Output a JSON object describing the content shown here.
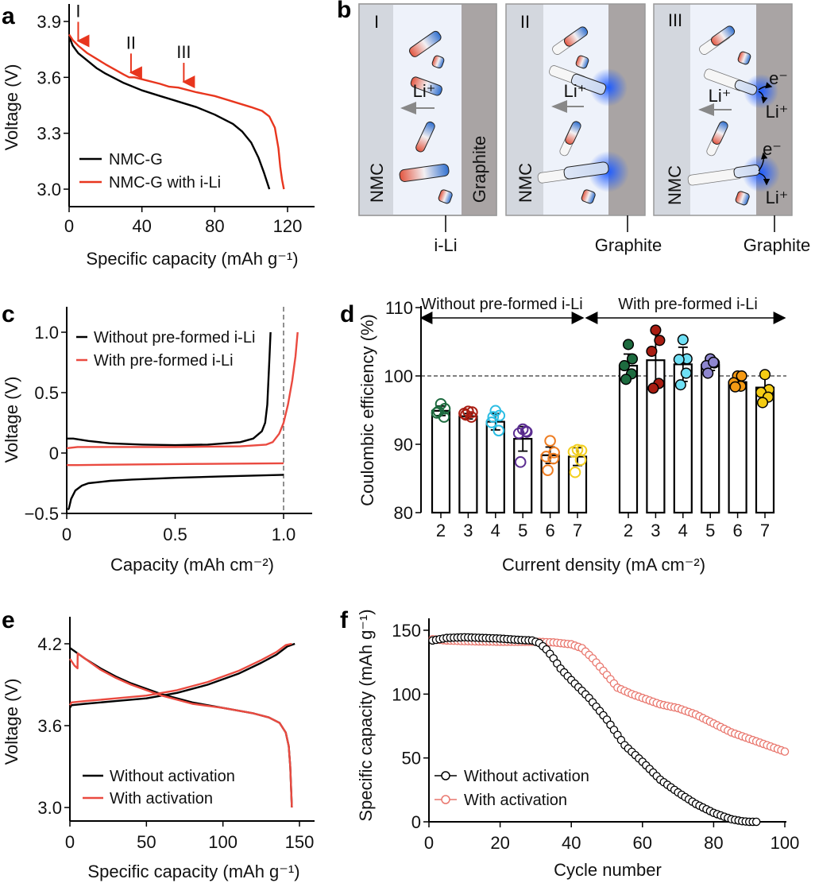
{
  "panel_labels": {
    "a": "a",
    "b": "b",
    "c": "c",
    "d": "d",
    "e": "e",
    "f": "f"
  },
  "colors": {
    "black": "#000000",
    "red_a": "#e8361e",
    "red_ce": "#ea4a40",
    "red_f": "#e9776e"
  },
  "chart_data": [
    {
      "id": "a",
      "type": "line",
      "xlabel": "Specific capacity (mAh g⁻¹)",
      "ylabel": "Voltage (V)",
      "xlim": [
        0,
        135
      ],
      "ylim": [
        2.9,
        3.95
      ],
      "xticks": [
        0,
        40,
        80,
        120
      ],
      "xtick_labels": [
        "0",
        "40",
        "80",
        "120"
      ],
      "yticks": [
        3.0,
        3.3,
        3.6,
        3.9
      ],
      "ytick_labels": [
        "3.0",
        "3.3",
        "3.6",
        "3.9"
      ],
      "legend": "bottom-left",
      "series": [
        {
          "name": "NMC-G",
          "color": "#000000",
          "segments": [
            {
              "x": [
                0,
                2,
                5,
                10,
                15,
                20,
                30,
                40,
                50,
                60,
                70,
                80,
                90,
                95,
                100,
                104,
                107,
                110
              ],
              "y": [
                3.82,
                3.77,
                3.73,
                3.69,
                3.65,
                3.62,
                3.57,
                3.53,
                3.5,
                3.47,
                3.44,
                3.4,
                3.35,
                3.31,
                3.25,
                3.17,
                3.09,
                3.0
              ]
            }
          ]
        },
        {
          "name": "NMC-G with i-Li",
          "color": "#e8361e",
          "segments": [
            {
              "x": [
                0,
                2,
                5,
                10,
                20,
                30,
                33,
                36,
                40,
                50,
                55,
                60,
                70,
                80,
                90,
                100,
                106,
                110,
                113,
                115,
                116,
                117,
                118
              ],
              "y": [
                3.83,
                3.8,
                3.77,
                3.73,
                3.67,
                3.615,
                3.6,
                3.6,
                3.59,
                3.565,
                3.55,
                3.545,
                3.52,
                3.5,
                3.47,
                3.44,
                3.42,
                3.39,
                3.33,
                3.22,
                3.12,
                3.05,
                3.0
              ]
            }
          ]
        }
      ],
      "annotations": [
        {
          "text": "I",
          "x": 5,
          "y": 3.77
        },
        {
          "text": "II",
          "x": 34,
          "y": 3.6
        },
        {
          "text": "III",
          "x": 63,
          "y": 3.55
        }
      ]
    },
    {
      "id": "c",
      "type": "line",
      "xlabel": "Capacity (mAh cm⁻²)",
      "ylabel": "Voltage (V)",
      "xlim": [
        0,
        1.13
      ],
      "ylim": [
        -0.5,
        1.2
      ],
      "xticks": [
        0,
        0.5,
        1.0
      ],
      "xtick_labels": [
        "0",
        "0.5",
        "1.0"
      ],
      "yticks": [
        -0.5,
        0,
        0.5,
        1.0
      ],
      "ytick_labels": [
        "−0.5",
        "0",
        "0.5",
        "1.0"
      ],
      "legend": "top-left",
      "reference_line": {
        "x": 1.0,
        "style": "dashed"
      },
      "series": [
        {
          "name": "Without pre-formed i-Li",
          "color": "#000000",
          "segments": [
            {
              "x": [
                0,
                0.03,
                0.1,
                0.2,
                0.35,
                0.5,
                0.65,
                0.8,
                0.86,
                0.9,
                0.915,
                0.925,
                0.93,
                0.935,
                0.94
              ],
              "y": [
                0.12,
                0.12,
                0.1,
                0.08,
                0.07,
                0.065,
                0.07,
                0.09,
                0.12,
                0.18,
                0.25,
                0.4,
                0.6,
                0.8,
                1.0
              ]
            },
            {
              "x": [
                0.005,
                0.01,
                0.02,
                0.04,
                0.07,
                0.1,
                0.2,
                0.3,
                0.5,
                0.7,
                1.0
              ],
              "y": [
                -0.47,
                -0.46,
                -0.38,
                -0.31,
                -0.27,
                -0.25,
                -0.23,
                -0.22,
                -0.205,
                -0.195,
                -0.18
              ]
            }
          ]
        },
        {
          "name": "With pre-formed i-Li",
          "color": "#ea4a40",
          "segments": [
            {
              "x": [
                0,
                0.05,
                0.2,
                0.5,
                0.8,
                0.92,
                0.95,
                0.98,
                1.0,
                1.02,
                1.04,
                1.055,
                1.065
              ],
              "y": [
                0.04,
                0.05,
                0.05,
                0.05,
                0.055,
                0.07,
                0.09,
                0.16,
                0.25,
                0.4,
                0.6,
                0.8,
                1.0
              ]
            },
            {
              "x": [
                0,
                0.05,
                0.3,
                0.6,
                1.0
              ],
              "y": [
                -0.1,
                -0.1,
                -0.095,
                -0.09,
                -0.085
              ]
            }
          ]
        }
      ]
    },
    {
      "id": "d",
      "type": "bar",
      "xlabel": "Current density (mA cm⁻²)",
      "ylabel": "Coulombic efficiency (%)",
      "ylim": [
        80,
        110
      ],
      "yticks": [
        80,
        90,
        100,
        110
      ],
      "ytick_labels": [
        "80",
        "90",
        "100",
        "110"
      ],
      "reference_line": {
        "y": 100,
        "style": "dashed"
      },
      "groups": [
        {
          "label": "Without pre-formed i-Li",
          "marker": "open",
          "categories": [
            "2",
            "3",
            "4",
            "5",
            "6",
            "7"
          ],
          "values": [
            94.9,
            94.1,
            93.3,
            90.8,
            88.4,
            88.2
          ],
          "errors": [
            0.7,
            0.4,
            1.2,
            1.8,
            1.2,
            1.3
          ],
          "colors": [
            "#1d6b3f",
            "#a81d12",
            "#2bbde3",
            "#5b2d91",
            "#ee7d22",
            "#f2cf22"
          ],
          "points": [
            [
              95.9,
              95.2,
              94.6,
              94.0,
              94.8
            ],
            [
              94.8,
              94.7,
              94.5,
              94.0,
              94.3
            ],
            [
              94.9,
              94.2,
              93.2,
              92.0,
              94.0
            ],
            [
              92.2,
              91.8,
              91.6,
              91.9,
              87.4
            ],
            [
              90.5,
              88.8,
              88.2,
              87.9,
              86.2
            ],
            [
              89.2,
              89.1,
              88.9,
              87.7,
              85.9
            ]
          ]
        },
        {
          "label": "With pre-formed i-Li",
          "marker": "filled",
          "categories": [
            "2",
            "3",
            "4",
            "5",
            "6",
            "7"
          ],
          "values": [
            101.5,
            102.3,
            101.7,
            101.6,
            99.1,
            98.3
          ],
          "errors": [
            1.7,
            4.0,
            2.5,
            0.8,
            0.7,
            1.5
          ],
          "colors": [
            "#1d6b3f",
            "#a81d12",
            "#6fe0f5",
            "#8e86cf",
            "#f59a14",
            "#f4cc14"
          ],
          "points": [
            [
              104.6,
              102.5,
              101.5,
              100.3,
              99.5
            ],
            [
              106.7,
              105.2,
              103.6,
              98.9,
              98.2
            ],
            [
              105.3,
              102.5,
              102.4,
              100.4,
              98.7
            ],
            [
              102.5,
              101.9,
              101.5,
              102.0,
              100.4
            ],
            [
              100.0,
              100.0,
              99.0,
              98.5,
              98.4
            ],
            [
              100.2,
              98.0,
              97.6,
              96.9,
              96.1
            ]
          ]
        }
      ]
    },
    {
      "id": "e",
      "type": "line",
      "xlabel": "Specific capacity (mAh g⁻¹)",
      "ylabel": "Voltage (V)",
      "xlim": [
        0,
        160
      ],
      "ylim": [
        2.9,
        4.35
      ],
      "xticks": [
        0,
        50,
        100,
        150
      ],
      "xtick_labels": [
        "0",
        "50",
        "100",
        "150"
      ],
      "yticks": [
        3.0,
        3.6,
        4.2
      ],
      "ytick_labels": [
        "3.0",
        "3.6",
        "4.2"
      ],
      "legend": "bottom-left",
      "series": [
        {
          "name": "Without activation",
          "color": "#000000",
          "segments": [
            {
              "x": [
                0,
                1,
                10,
                30,
                50,
                70,
                90,
                110,
                125,
                135,
                142,
                147
              ],
              "y": [
                3.73,
                3.75,
                3.76,
                3.78,
                3.8,
                3.84,
                3.9,
                3.98,
                4.06,
                4.12,
                4.18,
                4.2
              ]
            },
            {
              "x": [
                0,
                10,
                20,
                30,
                40,
                50,
                60,
                80,
                100,
                120,
                130,
                137,
                141,
                143,
                144,
                145
              ],
              "y": [
                4.17,
                4.09,
                4.02,
                3.96,
                3.91,
                3.87,
                3.83,
                3.77,
                3.73,
                3.69,
                3.66,
                3.62,
                3.55,
                3.45,
                3.3,
                3.0
              ]
            }
          ]
        },
        {
          "name": "With activation",
          "color": "#ea4a40",
          "segments": [
            {
              "x": [
                0,
                1,
                10,
                30,
                50,
                70,
                90,
                110,
                125,
                135,
                141,
                145
              ],
              "y": [
                3.75,
                3.77,
                3.78,
                3.8,
                3.82,
                3.86,
                3.92,
                4.0,
                4.08,
                4.14,
                4.19,
                4.2
              ]
            },
            {
              "x": [
                0,
                3,
                5,
                5.1,
                10,
                20,
                30,
                40,
                50,
                60,
                80,
                100,
                120,
                130,
                137,
                141,
                143,
                144,
                145
              ],
              "y": [
                4.09,
                4.04,
                4.02,
                4.13,
                4.09,
                4.01,
                3.95,
                3.9,
                3.86,
                3.82,
                3.76,
                3.73,
                3.69,
                3.66,
                3.62,
                3.55,
                3.45,
                3.3,
                3.0
              ]
            }
          ]
        }
      ]
    },
    {
      "id": "f",
      "type": "scatter",
      "xlabel": "Cycle number",
      "ylabel": "Specific capacity (mAh g⁻¹)",
      "xlim": [
        0,
        100
      ],
      "ylim": [
        0,
        160
      ],
      "xticks": [
        0,
        20,
        40,
        60,
        80,
        100
      ],
      "xtick_labels": [
        "0",
        "20",
        "40",
        "60",
        "80",
        "100"
      ],
      "yticks": [
        0,
        50,
        100,
        150
      ],
      "ytick_labels": [
        "0",
        "50",
        "100",
        "150"
      ],
      "legend": "bottom-left",
      "marker": "open-circle",
      "series": [
        {
          "name": "Without activation",
          "color": "#000000",
          "cycles": [
            1,
            92
          ],
          "knots_x": [
            1,
            5,
            10,
            15,
            20,
            25,
            29,
            31,
            33,
            35,
            37,
            40,
            45,
            50,
            55,
            60,
            65,
            70,
            75,
            80,
            85,
            88,
            90,
            92
          ],
          "knots_y": [
            142,
            144,
            144.5,
            144,
            143.5,
            142.5,
            142,
            140,
            135,
            128,
            120,
            111,
            97,
            80,
            60,
            47,
            33,
            23,
            14,
            7,
            2,
            0.5,
            0,
            0
          ]
        },
        {
          "name": "With activation",
          "color": "#e9776e",
          "cycles": [
            1,
            100
          ],
          "knots_x": [
            1,
            5,
            10,
            20,
            30,
            35,
            40,
            43,
            46,
            50,
            53,
            57,
            60,
            65,
            70,
            75,
            80,
            85,
            90,
            95,
            100
          ],
          "knots_y": [
            143,
            142,
            141.5,
            141,
            141,
            140.5,
            139,
            136,
            128,
            115,
            105,
            100,
            97,
            92,
            89,
            84,
            77,
            70,
            65,
            60,
            55
          ]
        }
      ]
    }
  ],
  "schematic": {
    "panels": [
      {
        "stage": "I",
        "left": "NMC",
        "right": "Graphite",
        "ion": "Li⁺",
        "callout": "i-Li"
      },
      {
        "stage": "II",
        "left": "NMC",
        "ion": "Li⁺",
        "callout": "Graphite"
      },
      {
        "stage": "III",
        "left": "NMC",
        "ion": "Li⁺",
        "callout": "Graphite",
        "electron1": "e⁻",
        "ion1": "Li⁺",
        "electron2": "e⁻",
        "ion2": "Li⁺"
      }
    ]
  }
}
